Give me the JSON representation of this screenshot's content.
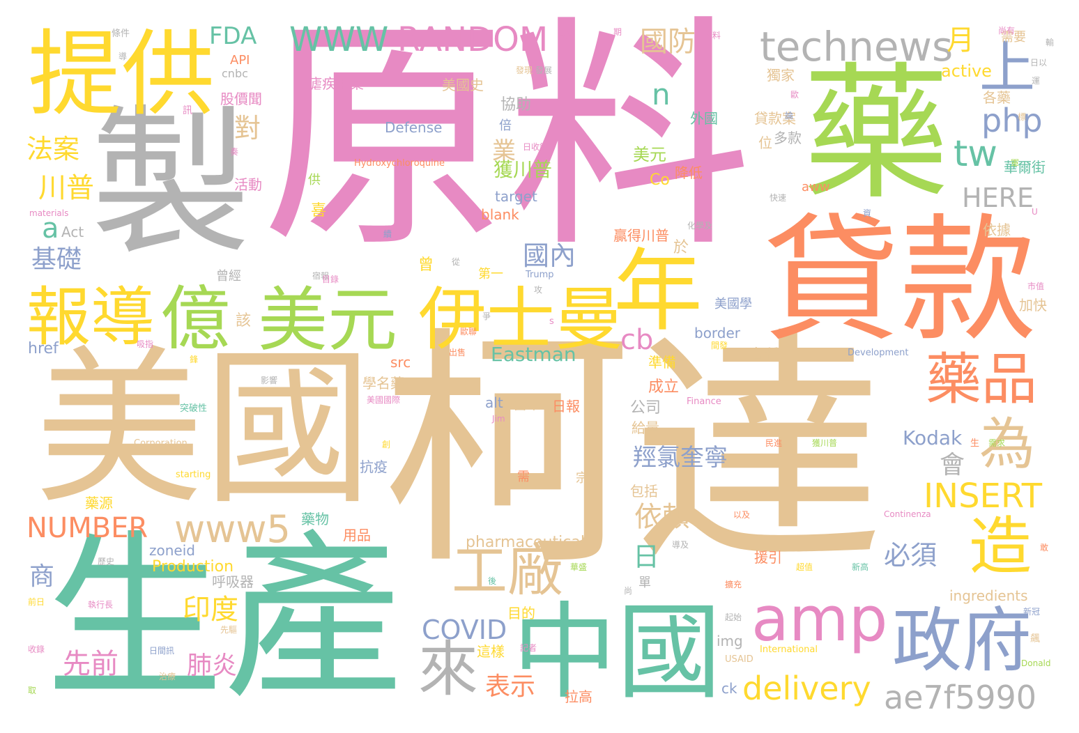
{
  "palette": {
    "green": "#66c2a5",
    "orange": "#fc8d62",
    "blue": "#8da0cb",
    "pink": "#e78ac3",
    "lime": "#a6d854",
    "yellow": "#ffd92f",
    "tan": "#e5c494",
    "gray": "#b3b3b3",
    "background": "#ffffff"
  },
  "words": {
    "w1": "原料",
    "w2": "柯達",
    "w3": "美國",
    "w4": "生產",
    "w5": "製",
    "w6": "藥",
    "w7": "貸款",
    "w8": "提供",
    "w9": "中國",
    "w10": "年",
    "w11": "美元",
    "w12": "伊士曼",
    "w13": "億",
    "w14": "報導",
    "w15": "政府",
    "w16": "藥品",
    "w17": "amp",
    "w18": "工廠",
    "w19": "來",
    "w20": "technews",
    "w21": "造",
    "w22": "為",
    "w23": "上",
    "w24": "WWW",
    "w25": "RANDOM",
    "w26": "www5",
    "w27": "ae7f5990",
    "w28": "delivery",
    "w29": "INSERT",
    "w30": "NUMBER",
    "w31": "php",
    "w32": "tw",
    "w33": "cb",
    "w34": "國防",
    "w35": "FDA",
    "w36": "川普",
    "w37": "法案",
    "w38": "基礎",
    "w39": "HERE",
    "w40": "國內",
    "w41": "羥氯奎寧",
    "w42": "依賴",
    "w43": "COVID",
    "w44": "先前",
    "w45": "肺炎",
    "w46": "印度",
    "w47": "表示",
    "w48": "Eastman",
    "w49": "必須",
    "w50": "Kodak",
    "w51": "n",
    "w52": "a",
    "w53": "月",
    "w54": "日",
    "w55": "業",
    "w56": "對",
    "w57": "商",
    "w58": "會",
    "w59": "Defense",
    "w60": "active",
    "w61": "pharmaceutical",
    "w62": "Production",
    "w63": "ingredients",
    "w64": "Hydroxychloroquine",
    "w65": "獲川普",
    "w66": "美元",
    "w67": "target",
    "w68": "blank",
    "w69": "cnbc",
    "w70": "API",
    "w71": "Act",
    "w72": "href",
    "w73": "src",
    "w74": "alt",
    "w75": "zoneid",
    "w76": "img",
    "w77": "ck",
    "w78": "border",
    "w79": "aww",
    "w80": "Co",
    "w81": "Trump",
    "w82": "Development",
    "w83": "Finance",
    "w84": "International",
    "w85": "USAID",
    "w86": "Donald",
    "w87": "Continenza",
    "w88": "Corporation",
    "w89": "starting",
    "w90": "Jim",
    "w91": "materials",
    "w92": "U",
    "w93": "s",
    "w94": "美國史",
    "w95": "股價聞",
    "w96": "協助",
    "w97": "倍",
    "w98": "外國",
    "w99": "獨家",
    "w100": "各藥",
    "w101": "需要",
    "w102": "瘧疾用藥",
    "w103": "貸款案",
    "w104": "多款",
    "w105": "位",
    "w106": "降低",
    "w107": "活動",
    "w108": "供",
    "w109": "喜",
    "w110": "依據",
    "w111": "贏得川普",
    "w112": "於",
    "w113": "第一",
    "w114": "美國學",
    "w115": "該",
    "w116": "準備",
    "w117": "成立",
    "w118": "公司",
    "w119": "當中",
    "w120": "日報",
    "w121": "學名藥",
    "w122": "給量",
    "w123": "包括",
    "w124": "藥源",
    "w125": "藥物",
    "w126": "抗疫",
    "w127": "用品",
    "w128": "呼吸器",
    "w129": "目的",
    "w130": "這樣",
    "w131": "拉高",
    "w132": "援引",
    "w133": "曾",
    "w134": "曾經",
    "w135": "加快",
    "w136": "華爾街",
    "w137": "各種",
    "w138": "單",
    "w139": "宗",
    "w140": "需",
    "w141": "條件",
    "w142": "商業",
    "w143": "物料",
    "w144": "訊",
    "w145": "發展",
    "w146": "日收錄",
    "w147": "化學及",
    "w148": "市值",
    "w149": "歷史",
    "w150": "突破性",
    "w151": "美國國際",
    "w152": "日間訊",
    "w153": "執行長",
    "w154": "前日",
    "w155": "收錄",
    "w156": "記者",
    "w157": "先驅",
    "w158": "治療",
    "w159": "起始",
    "w160": "新冠",
    "w161": "飆",
    "w162": "擴充",
    "w163": "新高",
    "w164": "超值",
    "w165": "後",
    "w166": "導及",
    "w167": "以及",
    "w168": "民進",
    "w169": "獲川普",
    "w170": "快速",
    "w171": "尚有",
    "w172": "日以",
    "w173": "發現",
    "w174": "宿報",
    "w175": "從",
    "w176": "創",
    "w177": "生",
    "w178": "敢",
    "w179": "華盛",
    "w180": "鋒",
    "w181": "爭",
    "w182": "間發",
    "w183": "歐聯",
    "w184": "吸指",
    "w185": "目錄",
    "w186": "影響",
    "w187": "出售",
    "w188": "論",
    "w189": "奏",
    "w190": "續",
    "w191": "期",
    "w192": "資",
    "w193": "標",
    "w194": "軍",
    "w195": "導",
    "w196": "需求",
    "w197": "攻",
    "w198": "尚",
    "w199": "取",
    "w200": "運",
    "w201": "歐",
    "w202": "輸"
  }
}
